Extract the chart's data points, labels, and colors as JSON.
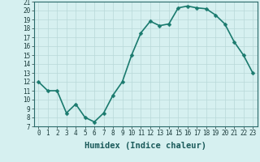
{
  "x": [
    0,
    1,
    2,
    3,
    4,
    5,
    6,
    7,
    8,
    9,
    10,
    11,
    12,
    13,
    14,
    15,
    16,
    17,
    18,
    19,
    20,
    21,
    22,
    23
  ],
  "y": [
    12,
    11,
    11,
    8.5,
    9.5,
    8,
    7.5,
    8.5,
    10.5,
    12,
    15,
    17.5,
    18.8,
    18.3,
    18.5,
    20.3,
    20.5,
    20.3,
    20.2,
    19.5,
    18.5,
    16.5,
    15,
    13
  ],
  "xlabel": "Humidex (Indice chaleur)",
  "ylim": [
    7,
    21
  ],
  "xlim": [
    -0.5,
    23.5
  ],
  "yticks": [
    7,
    8,
    9,
    10,
    11,
    12,
    13,
    14,
    15,
    16,
    17,
    18,
    19,
    20,
    21
  ],
  "xticks": [
    0,
    1,
    2,
    3,
    4,
    5,
    6,
    7,
    8,
    9,
    10,
    11,
    12,
    13,
    14,
    15,
    16,
    17,
    18,
    19,
    20,
    21,
    22,
    23
  ],
  "line_color": "#1a7a6e",
  "marker_color": "#1a7a6e",
  "bg_color": "#d6f0f0",
  "grid_color": "#b8d8d8",
  "tick_label_fontsize": 5.5,
  "xlabel_fontsize": 7.5,
  "line_width": 1.2,
  "marker_size": 2.5
}
